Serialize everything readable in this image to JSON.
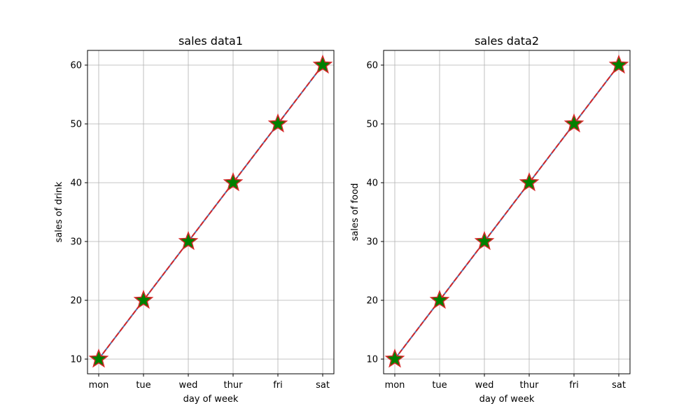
{
  "colors": {
    "line": "#4c72b0",
    "line_dash": "#d62728",
    "marker_fill": "#008000",
    "marker_edge": "#d62728",
    "grid": "#b0b0b0"
  },
  "chart_data": [
    {
      "type": "line",
      "title": "sales data1",
      "xlabel": "day of week",
      "ylabel": "sales of drink",
      "categories": [
        "mon",
        "tue",
        "wed",
        "thur",
        "fri",
        "sat"
      ],
      "series": [
        {
          "values": [
            10,
            20,
            30,
            40,
            50,
            60
          ]
        }
      ],
      "ylim": [
        7.5,
        62.5
      ],
      "yticks": [
        10,
        20,
        30,
        40,
        50,
        60
      ],
      "grid": true,
      "marker": "star"
    },
    {
      "type": "line",
      "title": "sales data2",
      "xlabel": "day of week",
      "ylabel": "sales of food",
      "categories": [
        "mon",
        "tue",
        "wed",
        "thur",
        "fri",
        "sat"
      ],
      "series": [
        {
          "values": [
            10,
            20,
            30,
            40,
            50,
            60
          ]
        }
      ],
      "ylim": [
        7.5,
        62.5
      ],
      "yticks": [
        10,
        20,
        30,
        40,
        50,
        60
      ],
      "grid": true,
      "marker": "star"
    }
  ]
}
